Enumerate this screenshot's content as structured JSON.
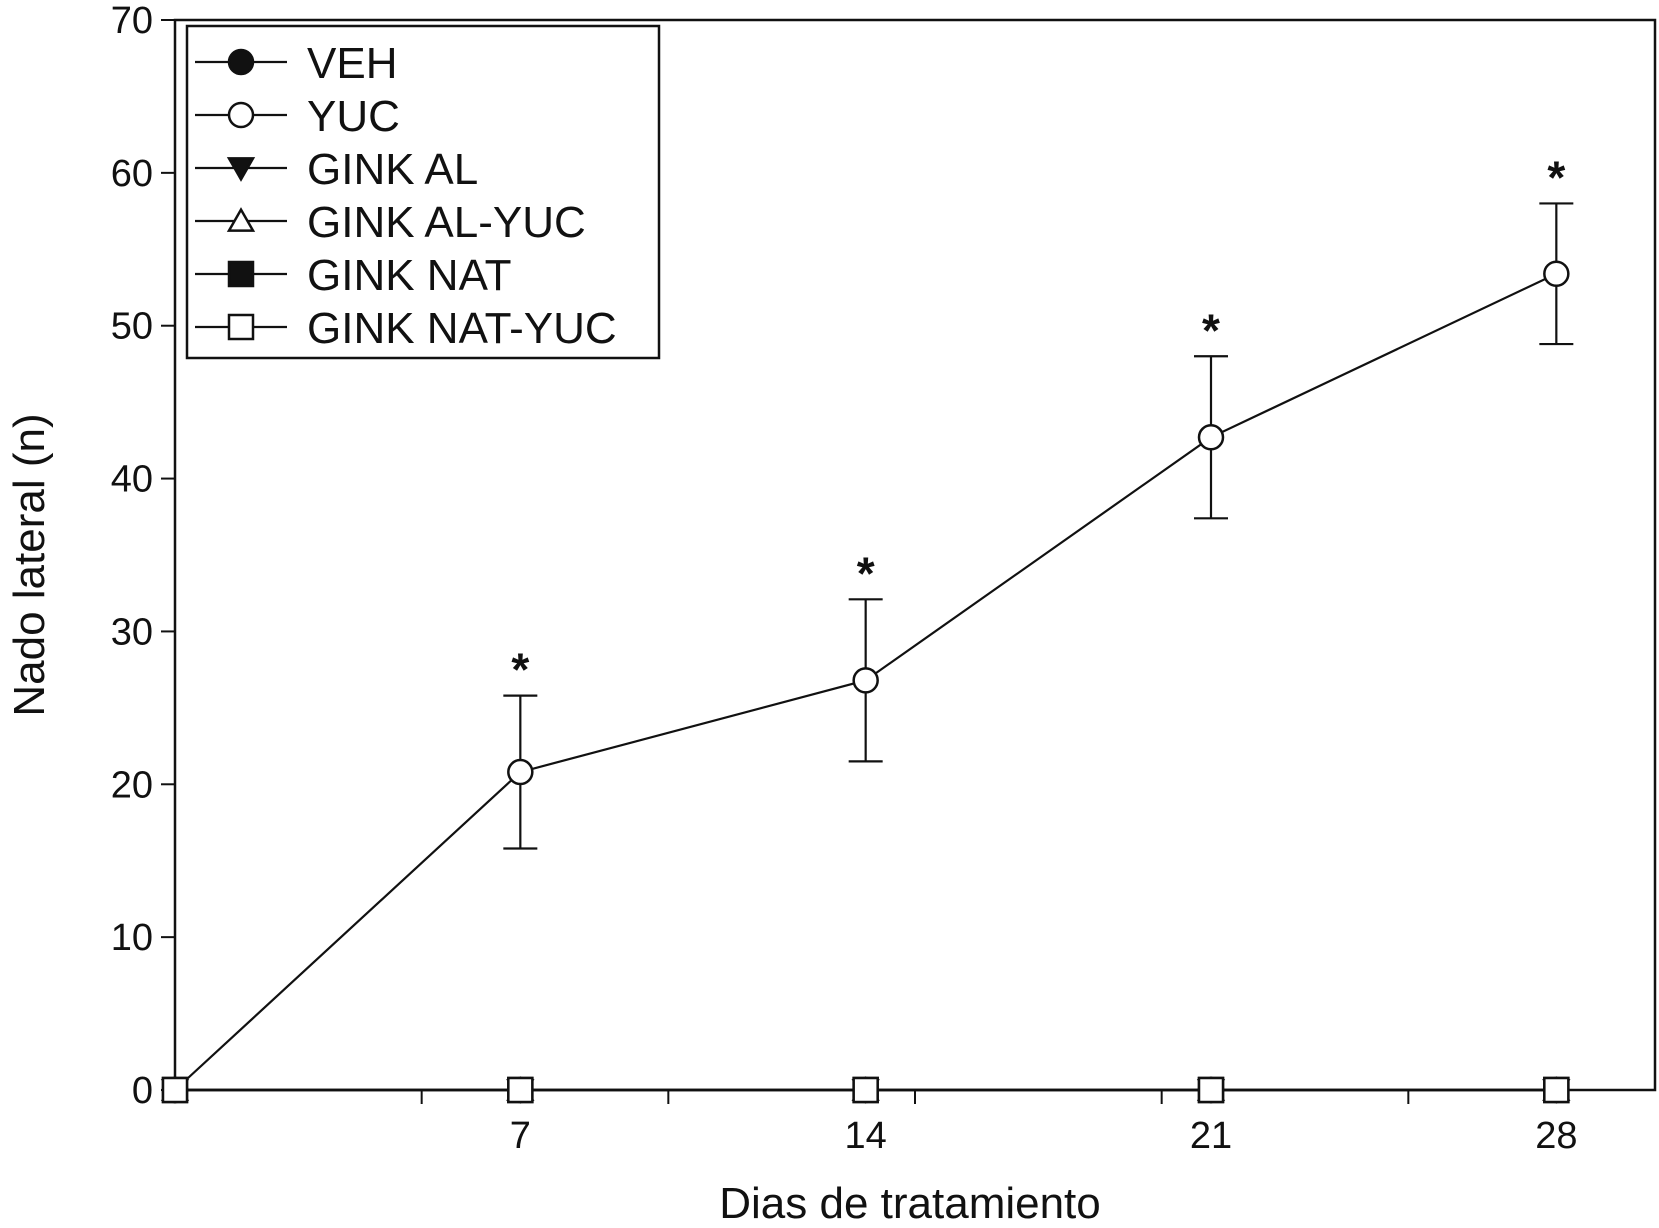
{
  "chart_data": {
    "type": "line",
    "title": "",
    "xlabel": "Dias de tratamiento",
    "ylabel": "Nado lateral (n)",
    "x": [
      0,
      7,
      14,
      21,
      28
    ],
    "x_tick_labels": [
      "7",
      "14",
      "21",
      "28"
    ],
    "x_tick_values": [
      7,
      14,
      21,
      28
    ],
    "xlim": [
      0,
      30
    ],
    "ylim": [
      0,
      70
    ],
    "y_ticks": [
      0,
      10,
      20,
      30,
      40,
      50,
      60,
      70
    ],
    "grid": false,
    "legend_position": "top-left",
    "series": [
      {
        "name": "VEH",
        "marker": "filled-circle",
        "values": [
          0,
          0,
          0,
          0,
          0
        ]
      },
      {
        "name": "YUC",
        "marker": "open-circle",
        "values": [
          0,
          20.8,
          26.8,
          42.7,
          53.4
        ],
        "error": [
          0,
          5,
          5.3,
          5.3,
          4.6
        ],
        "significance": [
          "",
          "*",
          "*",
          "*",
          "*"
        ]
      },
      {
        "name": "GINK AL",
        "marker": "filled-triangle-down",
        "values": [
          0,
          0,
          0,
          0,
          0
        ]
      },
      {
        "name": "GINK AL-YUC",
        "marker": "open-triangle-up",
        "values": [
          0,
          0,
          0,
          0,
          0
        ]
      },
      {
        "name": "GINK NAT",
        "marker": "filled-square",
        "values": [
          0,
          0,
          0,
          0,
          0
        ]
      },
      {
        "name": "GINK NAT-YUC",
        "marker": "open-square",
        "values": [
          0,
          0,
          0,
          0,
          0
        ]
      }
    ],
    "colors": {
      "line": "#111111",
      "marker_fill": "#111111",
      "marker_open": "#ffffff"
    }
  }
}
